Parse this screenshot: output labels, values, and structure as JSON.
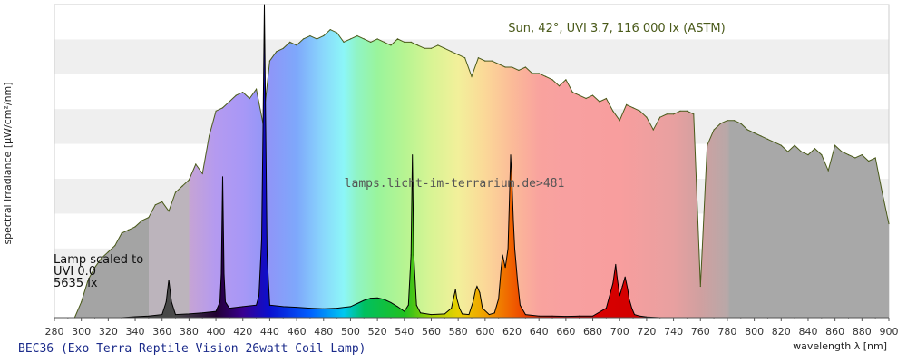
{
  "chart_data": {
    "type": "area",
    "xlabel": "wavelength λ [nm]",
    "ylabel": "spectral irradiance [µW/cm²/nm]",
    "xlim": [
      280,
      900
    ],
    "x_ticks": [
      280,
      300,
      320,
      340,
      360,
      380,
      400,
      420,
      440,
      460,
      480,
      500,
      520,
      540,
      560,
      580,
      600,
      620,
      640,
      660,
      680,
      700,
      720,
      740,
      760,
      780,
      800,
      820,
      840,
      860,
      880,
      900
    ],
    "ylim": [
      0,
      1
    ],
    "y_tick_labels_visible": false,
    "grid": "horizontal alternating bands",
    "sun_label": "Sun, 42°, UVI 3.7, 116 000 lx (ASTM)",
    "watermark": "lamps.licht-im-terrarium.de>481",
    "lamp_note": [
      "Lamp scaled to",
      "UVI 0.0",
      "5635 lx"
    ],
    "series": [
      {
        "name": "Sun, 42°, UVI 3.7, 116 000 lx (ASTM)",
        "x": [
          295,
          300,
          305,
          310,
          315,
          320,
          325,
          330,
          335,
          340,
          345,
          350,
          355,
          360,
          365,
          370,
          375,
          380,
          385,
          390,
          395,
          400,
          405,
          410,
          415,
          420,
          425,
          430,
          435,
          440,
          445,
          450,
          455,
          460,
          465,
          470,
          475,
          480,
          485,
          490,
          495,
          500,
          505,
          510,
          515,
          520,
          525,
          530,
          535,
          540,
          545,
          550,
          555,
          560,
          565,
          570,
          575,
          580,
          585,
          590,
          595,
          600,
          605,
          610,
          615,
          620,
          625,
          630,
          635,
          640,
          645,
          650,
          655,
          660,
          665,
          670,
          675,
          680,
          685,
          690,
          695,
          700,
          705,
          710,
          715,
          720,
          725,
          730,
          735,
          740,
          745,
          750,
          755,
          760,
          765,
          770,
          775,
          780,
          785,
          790,
          795,
          800,
          805,
          810,
          815,
          820,
          825,
          830,
          835,
          840,
          845,
          850,
          855,
          860,
          865,
          870,
          875,
          880,
          885,
          890,
          895,
          900
        ],
        "values": [
          0.0,
          0.05,
          0.12,
          0.16,
          0.19,
          0.21,
          0.23,
          0.27,
          0.28,
          0.29,
          0.31,
          0.32,
          0.36,
          0.37,
          0.34,
          0.4,
          0.42,
          0.44,
          0.49,
          0.46,
          0.58,
          0.66,
          0.67,
          0.69,
          0.71,
          0.72,
          0.7,
          0.73,
          0.62,
          0.82,
          0.85,
          0.86,
          0.88,
          0.87,
          0.89,
          0.9,
          0.89,
          0.9,
          0.92,
          0.91,
          0.88,
          0.89,
          0.9,
          0.89,
          0.88,
          0.89,
          0.88,
          0.87,
          0.89,
          0.88,
          0.88,
          0.87,
          0.86,
          0.86,
          0.87,
          0.86,
          0.85,
          0.84,
          0.83,
          0.77,
          0.83,
          0.82,
          0.82,
          0.81,
          0.8,
          0.8,
          0.79,
          0.8,
          0.78,
          0.78,
          0.77,
          0.76,
          0.74,
          0.76,
          0.72,
          0.71,
          0.7,
          0.71,
          0.69,
          0.7,
          0.66,
          0.63,
          0.68,
          0.67,
          0.66,
          0.64,
          0.6,
          0.64,
          0.65,
          0.65,
          0.66,
          0.66,
          0.65,
          0.1,
          0.55,
          0.6,
          0.62,
          0.63,
          0.63,
          0.62,
          0.6,
          0.59,
          0.58,
          0.57,
          0.56,
          0.55,
          0.53,
          0.55,
          0.53,
          0.52,
          0.54,
          0.52,
          0.47,
          0.55,
          0.53,
          0.52,
          0.51,
          0.52,
          0.5,
          0.51,
          0.4,
          0.3
        ],
        "colors": {
          "fill_outside": "#a0a0a0",
          "outline": "#4a5a1a"
        }
      },
      {
        "name": "BEC36 (Exo Terra Reptile Vision 26watt Coil Lamp)",
        "x": [
          330,
          340,
          350,
          360,
          363,
          365,
          367,
          370,
          380,
          390,
          400,
          403,
          404,
          405,
          406,
          407,
          410,
          420,
          430,
          432,
          434,
          435,
          436,
          437,
          438,
          440,
          450,
          460,
          470,
          480,
          490,
          500,
          505,
          510,
          515,
          520,
          525,
          530,
          535,
          540,
          543,
          545,
          546,
          547,
          549,
          552,
          560,
          570,
          575,
          577,
          578,
          579,
          581,
          583,
          588,
          591,
          593,
          594,
          596,
          598,
          603,
          607,
          610,
          612,
          613,
          615,
          617,
          618,
          619,
          620,
          621,
          622,
          624,
          626,
          630,
          640,
          650,
          660,
          670,
          680,
          690,
          695,
          697,
          698,
          700,
          702,
          704,
          706,
          707,
          709,
          711,
          715,
          720,
          730
        ],
        "values": [
          0.0,
          0.003,
          0.005,
          0.01,
          0.05,
          0.12,
          0.05,
          0.01,
          0.012,
          0.015,
          0.02,
          0.05,
          0.14,
          0.45,
          0.14,
          0.05,
          0.03,
          0.035,
          0.04,
          0.07,
          0.25,
          0.6,
          1.0,
          0.6,
          0.2,
          0.04,
          0.035,
          0.033,
          0.03,
          0.028,
          0.03,
          0.035,
          0.045,
          0.055,
          0.062,
          0.063,
          0.058,
          0.048,
          0.035,
          0.02,
          0.04,
          0.2,
          0.52,
          0.2,
          0.04,
          0.015,
          0.01,
          0.012,
          0.03,
          0.07,
          0.09,
          0.06,
          0.03,
          0.012,
          0.01,
          0.05,
          0.09,
          0.1,
          0.08,
          0.03,
          0.01,
          0.015,
          0.06,
          0.16,
          0.2,
          0.16,
          0.22,
          0.36,
          0.52,
          0.43,
          0.31,
          0.22,
          0.12,
          0.04,
          0.01,
          0.005,
          0.005,
          0.004,
          0.005,
          0.005,
          0.03,
          0.11,
          0.17,
          0.13,
          0.07,
          0.1,
          0.13,
          0.09,
          0.06,
          0.03,
          0.01,
          0.005,
          0.002,
          0.0
        ],
        "colors": {
          "outline": "#000000"
        }
      }
    ],
    "title": "BEC36 (Exo Terra Reptile Vision 26watt Coil Lamp)"
  }
}
